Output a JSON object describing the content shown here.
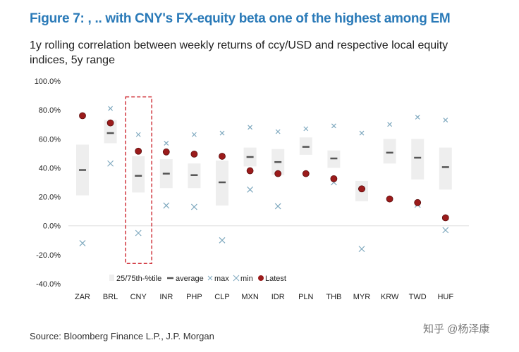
{
  "title": "Figure 7: , .. with CNY's FX-equity beta one of the highest among EM",
  "subtitle": "1y rolling correlation between weekly returns of ccy/USD and respective local equity indices, 5y range",
  "source": "Source: Bloomberg Finance L.P., J.P. Morgan",
  "watermark": "知乎 @杨泽康",
  "chart_data": {
    "type": "range-scatter",
    "categories": [
      "ZAR",
      "BRL",
      "CNY",
      "INR",
      "PHP",
      "CLP",
      "MXN",
      "IDR",
      "PLN",
      "THB",
      "MYR",
      "KRW",
      "TWD",
      "HUF"
    ],
    "ylim": [
      -40,
      100
    ],
    "yticks": [
      "100.0%",
      "80.0%",
      "60.0%",
      "40.0%",
      "20.0%",
      "0.0%",
      "-20.0%",
      "-40.0%"
    ],
    "legend": {
      "position": "bottom",
      "entries": [
        "25/75th-%tile",
        "average",
        "max",
        "min",
        "Latest"
      ]
    },
    "highlight": "CNY",
    "colors": {
      "box": "#eeeeee",
      "average": "#555555",
      "max": "#7fa9bf",
      "min": "#7fa9bf",
      "latest": "#9b1b1b",
      "highlight": "#d0323a"
    },
    "series": {
      "p25": [
        21,
        57,
        23,
        26,
        26,
        14,
        41,
        35,
        49,
        40,
        17,
        43,
        32,
        25
      ],
      "p75": [
        56,
        73,
        48,
        46,
        43,
        45,
        54,
        53,
        61,
        52,
        31,
        60,
        60,
        54
      ],
      "average": [
        38.5,
        64,
        34.5,
        36,
        35,
        30,
        47.5,
        44,
        54.5,
        46.5,
        25.5,
        50.5,
        47,
        40.5
      ],
      "max": [
        null,
        81,
        63,
        57,
        63,
        64,
        68,
        65,
        67,
        69,
        64,
        70,
        75,
        73
      ],
      "min": [
        -12,
        43,
        -5,
        14,
        13,
        -10,
        25,
        13.5,
        null,
        30,
        -16,
        null,
        14.5,
        -3
      ],
      "latest": [
        76,
        71,
        51.5,
        51,
        49.5,
        48,
        38,
        36,
        36,
        32.5,
        25.5,
        18.5,
        16,
        5.5
      ]
    }
  }
}
